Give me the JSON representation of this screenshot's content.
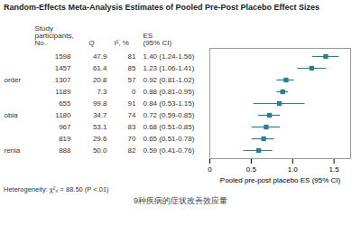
{
  "chart_data": {
    "type": "forest",
    "title": "Random-Effects Meta-Analysis Estimates of Pooled Pre-Post Placebo Effect Sizes",
    "subtitle": "9种疾病的症状改善效应量",
    "annotation": "Heterogeneity: χ²₈ = 88.50 (P <.01)",
    "categories": [
      null,
      null,
      "order",
      null,
      null,
      "obia",
      null,
      null,
      "renia"
    ],
    "columns": [
      {
        "name": "Study\nparticipants,\nNo.",
        "values": [
          "1598",
          "1457",
          "1307",
          "1189",
          "655",
          "1180",
          "967",
          "819",
          "888"
        ]
      },
      {
        "name": "Q",
        "values": [
          "47.9",
          "61.4",
          "20.8",
          "7.3",
          "99.8",
          "34.7",
          "53.1",
          "29.6",
          "50.0"
        ]
      },
      {
        "name": "I², %",
        "values": [
          "81",
          "85",
          "57",
          "0",
          "91",
          "74",
          "83",
          "70",
          "82"
        ]
      },
      {
        "name": "ES\n(95% CI)",
        "values": [
          "1.40 (1.24-1.56)",
          "1.23 (1.06-1.41)",
          "0.92 (0.81-1.02)",
          "0.88 (0.81-0.95)",
          "0.84 (0.53-1.15)",
          "0.72 (0.59-0.85)",
          "0.68 (0.51-0.85)",
          "0.65 (0.51-0.78)",
          "0.59 (0.41-0.76)"
        ]
      }
    ],
    "values": [
      1.4,
      1.23,
      0.92,
      0.88,
      0.84,
      0.72,
      0.68,
      0.65,
      0.59
    ],
    "ci_low": [
      1.24,
      1.06,
      0.81,
      0.81,
      0.53,
      0.59,
      0.51,
      0.51,
      0.41
    ],
    "ci_high": [
      1.56,
      1.41,
      1.02,
      0.95,
      1.15,
      0.85,
      0.85,
      0.78,
      0.76
    ],
    "xlabel": "Pooled pre-post placebo ES (95% CI)",
    "xlim": [
      0,
      1.7
    ],
    "xticks": [
      0,
      0.5,
      {
        "value": 1.0,
        "label": "1.0"
      },
      1.5
    ],
    "color": "#2d7d8c",
    "marker": "square"
  }
}
